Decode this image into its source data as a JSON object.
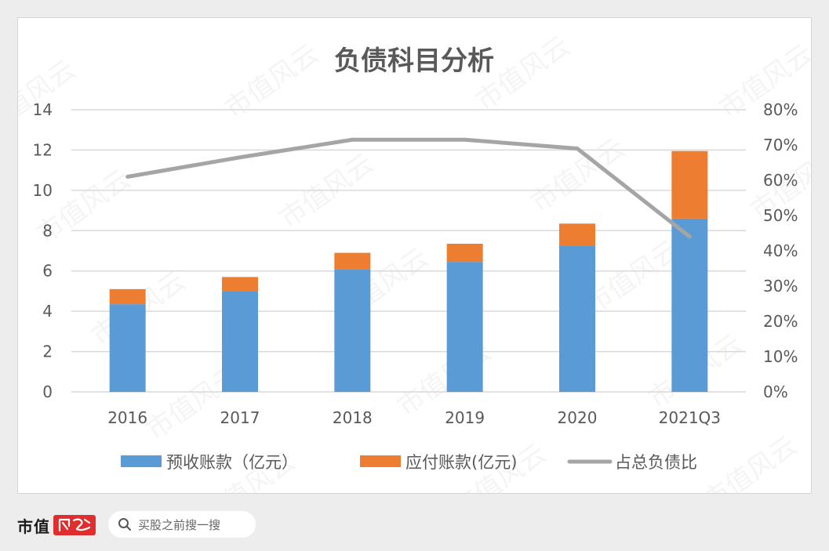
{
  "chart_data": {
    "type": "bar",
    "stacked": true,
    "title": "负债科目分析",
    "categories": [
      "2016",
      "2017",
      "2018",
      "2019",
      "2020",
      "2021Q3"
    ],
    "series": [
      {
        "name": "预收账款（亿元）",
        "type": "bar",
        "axis": "left",
        "color": "#5b9bd5",
        "values": [
          4.35,
          5.0,
          6.1,
          6.45,
          7.25,
          8.6
        ]
      },
      {
        "name": "应付账款(亿元)",
        "type": "bar",
        "axis": "left",
        "color": "#ed7d31",
        "values": [
          0.75,
          0.7,
          0.8,
          0.9,
          1.1,
          3.35
        ]
      },
      {
        "name": "占总负债比",
        "type": "line",
        "axis": "right",
        "color": "#a5a5a5",
        "values": [
          61,
          66.5,
          71.5,
          71.5,
          69,
          44
        ]
      }
    ],
    "ylim": [
      0,
      14
    ],
    "yticks": [
      "0",
      "2",
      "4",
      "6",
      "8",
      "10",
      "12",
      "14"
    ],
    "y2lim": [
      0,
      80
    ],
    "y2ticks": [
      "0%",
      "10%",
      "20%",
      "30%",
      "40%",
      "50%",
      "60%",
      "70%",
      "80%"
    ],
    "grid": true,
    "legend": "bottom"
  },
  "footer": {
    "brand": "市值",
    "search_placeholder": "买股之前搜一搜",
    "search_icon": "search-icon"
  },
  "watermark": "市值风云"
}
